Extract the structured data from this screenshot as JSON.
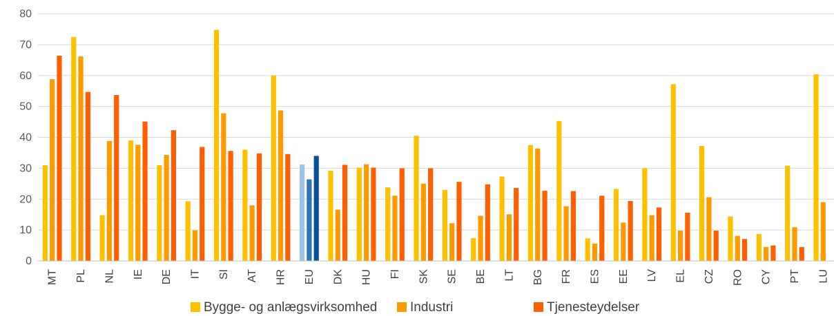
{
  "chart_data": {
    "type": "bar",
    "title": "",
    "xlabel": "",
    "ylabel": "",
    "ylim": [
      0,
      80
    ],
    "yticks": [
      0,
      10,
      20,
      30,
      40,
      50,
      60,
      70,
      80
    ],
    "grid": true,
    "legend_position": "bottom",
    "categories": [
      "MT",
      "PL",
      "NL",
      "IE",
      "DE",
      "IT",
      "SI",
      "AT",
      "HR",
      "EU",
      "DK",
      "HU",
      "FI",
      "SK",
      "SE",
      "BE",
      "LT",
      "BG",
      "FR",
      "ES",
      "EE",
      "LV",
      "EL",
      "CZ",
      "RO",
      "CY",
      "PT",
      "LU"
    ],
    "highlight_category": "EU",
    "series": [
      {
        "name": "Bygge- og anlægsvirksomhed",
        "color": "#ffc000",
        "highlight_color": "#9dc3e6",
        "values": [
          31,
          72.5,
          14.8,
          39,
          31,
          19.3,
          74.8,
          36,
          60,
          31.2,
          29.2,
          30.2,
          23.8,
          40.5,
          23,
          7.4,
          27.3,
          37.5,
          45.3,
          7.3,
          23.3,
          30,
          57.2,
          37.2,
          14.4,
          8.7,
          30.8,
          60.4
        ]
      },
      {
        "name": "Industri",
        "color": "#ff9900",
        "highlight_color": "#2e75b6",
        "values": [
          58.8,
          66.2,
          38.8,
          37.6,
          34.3,
          9.9,
          47.8,
          18,
          48.7,
          26.4,
          16.6,
          31.3,
          21.1,
          25,
          12.2,
          14.6,
          15.1,
          36.4,
          17.7,
          5.6,
          12.4,
          14.8,
          9.8,
          20.6,
          8.1,
          4.5,
          10.9,
          19
        ]
      },
      {
        "name": "Tjenesteydelser",
        "color": "#ff5f00",
        "highlight_color": "#0b4f9c",
        "values": [
          66.4,
          54.7,
          53.7,
          45.1,
          42.3,
          36.9,
          35.6,
          34.8,
          34.6,
          34,
          31.1,
          30.2,
          30,
          30,
          25.6,
          24.8,
          23.6,
          22.7,
          22.6,
          21.1,
          19.4,
          17.3,
          15.6,
          9.8,
          7.1,
          5,
          4.5,
          0
        ]
      }
    ]
  }
}
